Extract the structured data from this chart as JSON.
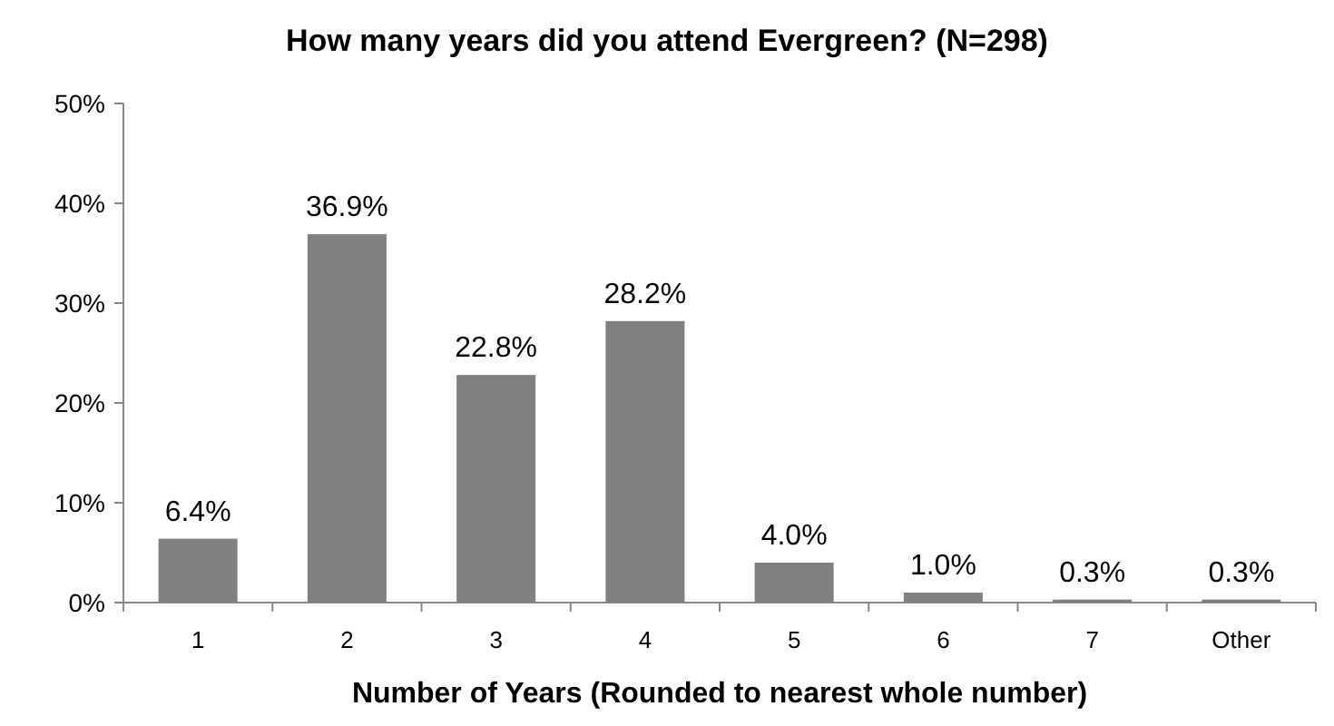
{
  "chart_data": {
    "type": "bar",
    "title": "How many years did you attend Evergreen? (N=298)",
    "xlabel": "Number of Years (Rounded to nearest whole number)",
    "categories": [
      "1",
      "2",
      "3",
      "4",
      "5",
      "6",
      "7",
      "Other"
    ],
    "values": [
      6.4,
      36.9,
      22.8,
      28.2,
      4.0,
      1.0,
      0.3,
      0.3
    ],
    "value_labels": [
      "6.4%",
      "36.9%",
      "22.8%",
      "28.2%",
      "4.0%",
      "1.0%",
      "0.3%",
      "0.3%"
    ],
    "color": "#808080",
    "ylim": [
      0,
      50
    ],
    "yticks": [
      {
        "value": 0,
        "label": "0%"
      },
      {
        "value": 10,
        "label": "10%"
      },
      {
        "value": 20,
        "label": "20%"
      },
      {
        "value": 30,
        "label": "30%"
      },
      {
        "value": 40,
        "label": "40%"
      },
      {
        "value": 50,
        "label": "50%"
      }
    ],
    "grid": false
  }
}
